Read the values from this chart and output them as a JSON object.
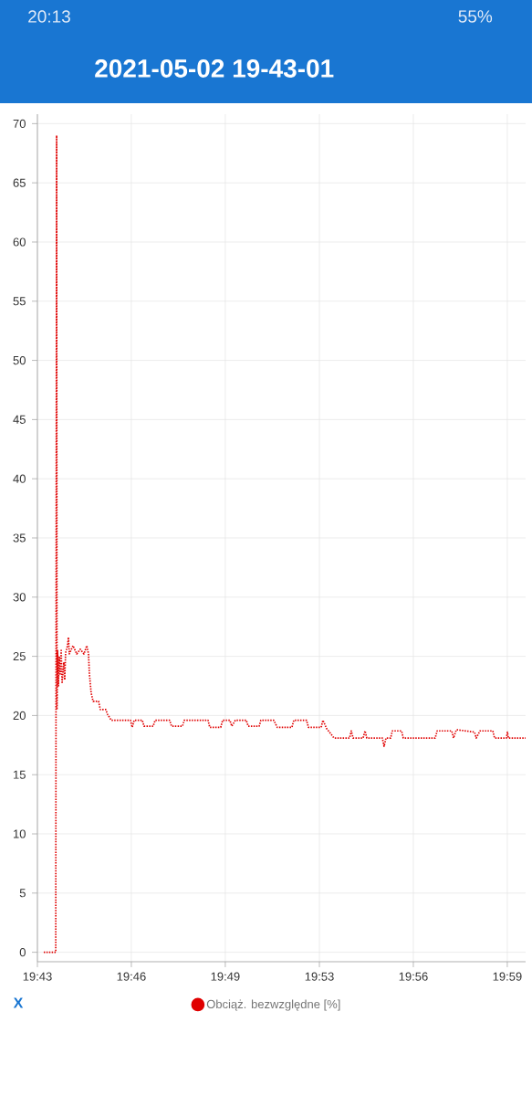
{
  "chart_data": {
    "type": "line",
    "title": "2021-05-02 19-43-01",
    "x": [
      19.7203,
      19.7239,
      19.7271,
      19.7276,
      19.7278,
      19.7281,
      19.7286,
      19.7291,
      19.7296,
      19.7302,
      19.7307,
      19.7317,
      19.7322,
      19.7327,
      19.7338,
      19.7343,
      19.7348,
      19.7369,
      19.739,
      19.741,
      19.7431,
      19.7447,
      19.7457,
      19.7462,
      19.7472,
      19.7483,
      19.7514,
      19.7524,
      19.7555,
      19.7565,
      19.7586,
      19.7695,
      19.7705,
      19.7716,
      19.7762,
      19.7772,
      19.7824,
      19.7835,
      19.7917,
      19.7928,
      19.799,
      19.8,
      19.8135,
      19.8145,
      19.8207,
      19.8218,
      19.8259,
      19.827,
      19.829,
      19.8352,
      19.8363,
      19.8425,
      19.8435,
      19.8508,
      19.8528,
      19.8611,
      19.8622,
      19.8694,
      19.8705,
      19.8777,
      19.8787,
      19.8808,
      19.8829,
      19.885,
      19.8938,
      19.8948,
      19.8958,
      19.9015,
      19.9026,
      19.9036,
      19.9124,
      19.9134,
      19.9145,
      19.9171,
      19.9181,
      19.9233,
      19.9243,
      19.9424,
      19.9435,
      19.9518,
      19.9528,
      19.9544,
      19.9647,
      19.9657,
      19.9678,
      19.9751,
      19.9761,
      19.9828,
      19.9834,
      19.9839,
      19.9937
    ],
    "series": [
      {
        "name": "Obciąż. bezwzględne [%]",
        "color": "#e00000",
        "values": [
          0,
          0,
          0,
          69,
          20.5,
          25.5,
          22.5,
          25,
          23.5,
          25.5,
          22.8,
          24.5,
          23,
          25.3,
          25.9,
          26.6,
          25.2,
          25.9,
          25.2,
          25.6,
          25.2,
          25.9,
          25.2,
          23.5,
          21.9,
          21.2,
          21.2,
          20.5,
          20.5,
          20.1,
          19.6,
          19.6,
          19.0,
          19.6,
          19.6,
          19.1,
          19.1,
          19.6,
          19.6,
          19.1,
          19.1,
          19.6,
          19.6,
          19.0,
          19.0,
          19.6,
          19.6,
          19.1,
          19.6,
          19.6,
          19.1,
          19.1,
          19.6,
          19.6,
          19.0,
          19.0,
          19.6,
          19.6,
          19.0,
          19.0,
          19.6,
          18.9,
          18.5,
          18.1,
          18.1,
          18.7,
          18.1,
          18.1,
          18.7,
          18.1,
          18.1,
          17.4,
          18.1,
          18.1,
          18.7,
          18.7,
          18.1,
          18.1,
          18.7,
          18.7,
          18.1,
          18.8,
          18.6,
          18.1,
          18.7,
          18.7,
          18.1,
          18.1,
          18.6,
          18.1,
          18.1
        ]
      }
    ],
    "xlim": [
      19.7167,
      19.9937
    ],
    "xticks": [
      {
        "value": 19.7167,
        "label": "19:43"
      },
      {
        "value": 19.77,
        "label": "19:46"
      },
      {
        "value": 19.8233,
        "label": "19:49"
      },
      {
        "value": 19.8767,
        "label": "19:53"
      },
      {
        "value": 19.93,
        "label": "19:56"
      },
      {
        "value": 19.9833,
        "label": "19:59"
      }
    ],
    "ylim": [
      -0.8,
      70.8
    ],
    "yticks": [
      0,
      5,
      10,
      15,
      20,
      25,
      30,
      35,
      40,
      45,
      50,
      55,
      60,
      65,
      70
    ],
    "grid": true,
    "legend": "bottom",
    "line_style": "dotted",
    "annotations": [
      "20:13",
      "55%",
      "X"
    ]
  }
}
